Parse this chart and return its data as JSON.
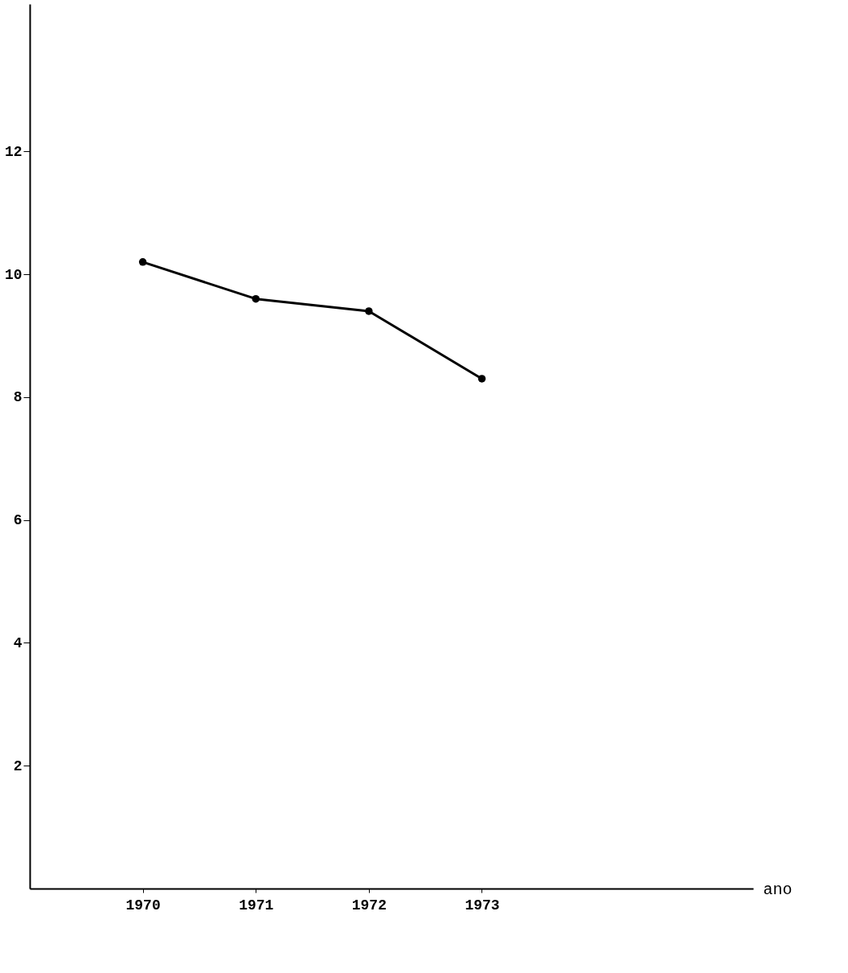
{
  "chart_data": {
    "type": "line",
    "xlabel": "ano",
    "x": [
      1970,
      1971,
      1972,
      1973
    ],
    "series": [
      {
        "color": "#000000",
        "values": [
          10.2,
          9.6,
          9.4,
          8.3
        ]
      }
    ],
    "xlim": [
      1969,
      1975.4
    ],
    "ylim": [
      0,
      14.4
    ],
    "xticks": [
      1970,
      1971,
      1972,
      1973
    ],
    "yticks": [
      2,
      4,
      6,
      8,
      10,
      12
    ],
    "grid": false,
    "legend": false,
    "marker": "circle",
    "line_style": "solid"
  }
}
